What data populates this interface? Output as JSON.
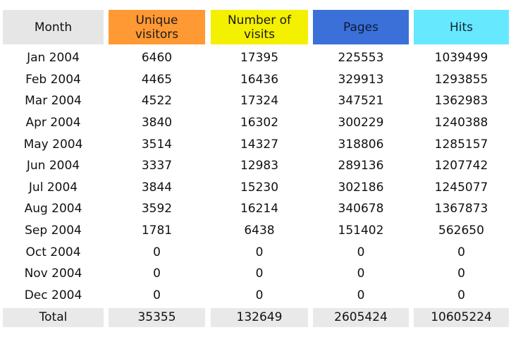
{
  "headers": {
    "month": "Month",
    "unique_visitors": "Unique\nvisitors",
    "visits": "Number of\nvisits",
    "pages": "Pages",
    "hits": "Hits"
  },
  "colors": {
    "unique_visitors": "#ff9933",
    "visits": "#f3f000",
    "pages": "#3a70d8",
    "hits": "#66e8ff"
  },
  "rows": [
    {
      "month": "Jan 2004",
      "unique": "6460",
      "visits": "17395",
      "pages": "225553",
      "hits": "1039499"
    },
    {
      "month": "Feb 2004",
      "unique": "4465",
      "visits": "16436",
      "pages": "329913",
      "hits": "1293855"
    },
    {
      "month": "Mar 2004",
      "unique": "4522",
      "visits": "17324",
      "pages": "347521",
      "hits": "1362983"
    },
    {
      "month": "Apr 2004",
      "unique": "3840",
      "visits": "16302",
      "pages": "300229",
      "hits": "1240388"
    },
    {
      "month": "May 2004",
      "unique": "3514",
      "visits": "14327",
      "pages": "318806",
      "hits": "1285157"
    },
    {
      "month": "Jun 2004",
      "unique": "3337",
      "visits": "12983",
      "pages": "289136",
      "hits": "1207742"
    },
    {
      "month": "Jul 2004",
      "unique": "3844",
      "visits": "15230",
      "pages": "302186",
      "hits": "1245077"
    },
    {
      "month": "Aug 2004",
      "unique": "3592",
      "visits": "16214",
      "pages": "340678",
      "hits": "1367873"
    },
    {
      "month": "Sep 2004",
      "unique": "1781",
      "visits": "6438",
      "pages": "151402",
      "hits": "562650"
    },
    {
      "month": "Oct 2004",
      "unique": "0",
      "visits": "0",
      "pages": "0",
      "hits": "0"
    },
    {
      "month": "Nov 2004",
      "unique": "0",
      "visits": "0",
      "pages": "0",
      "hits": "0"
    },
    {
      "month": "Dec 2004",
      "unique": "0",
      "visits": "0",
      "pages": "0",
      "hits": "0"
    }
  ],
  "total": {
    "label": "Total",
    "unique": "35355",
    "visits": "132649",
    "pages": "2605424",
    "hits": "10605224"
  }
}
